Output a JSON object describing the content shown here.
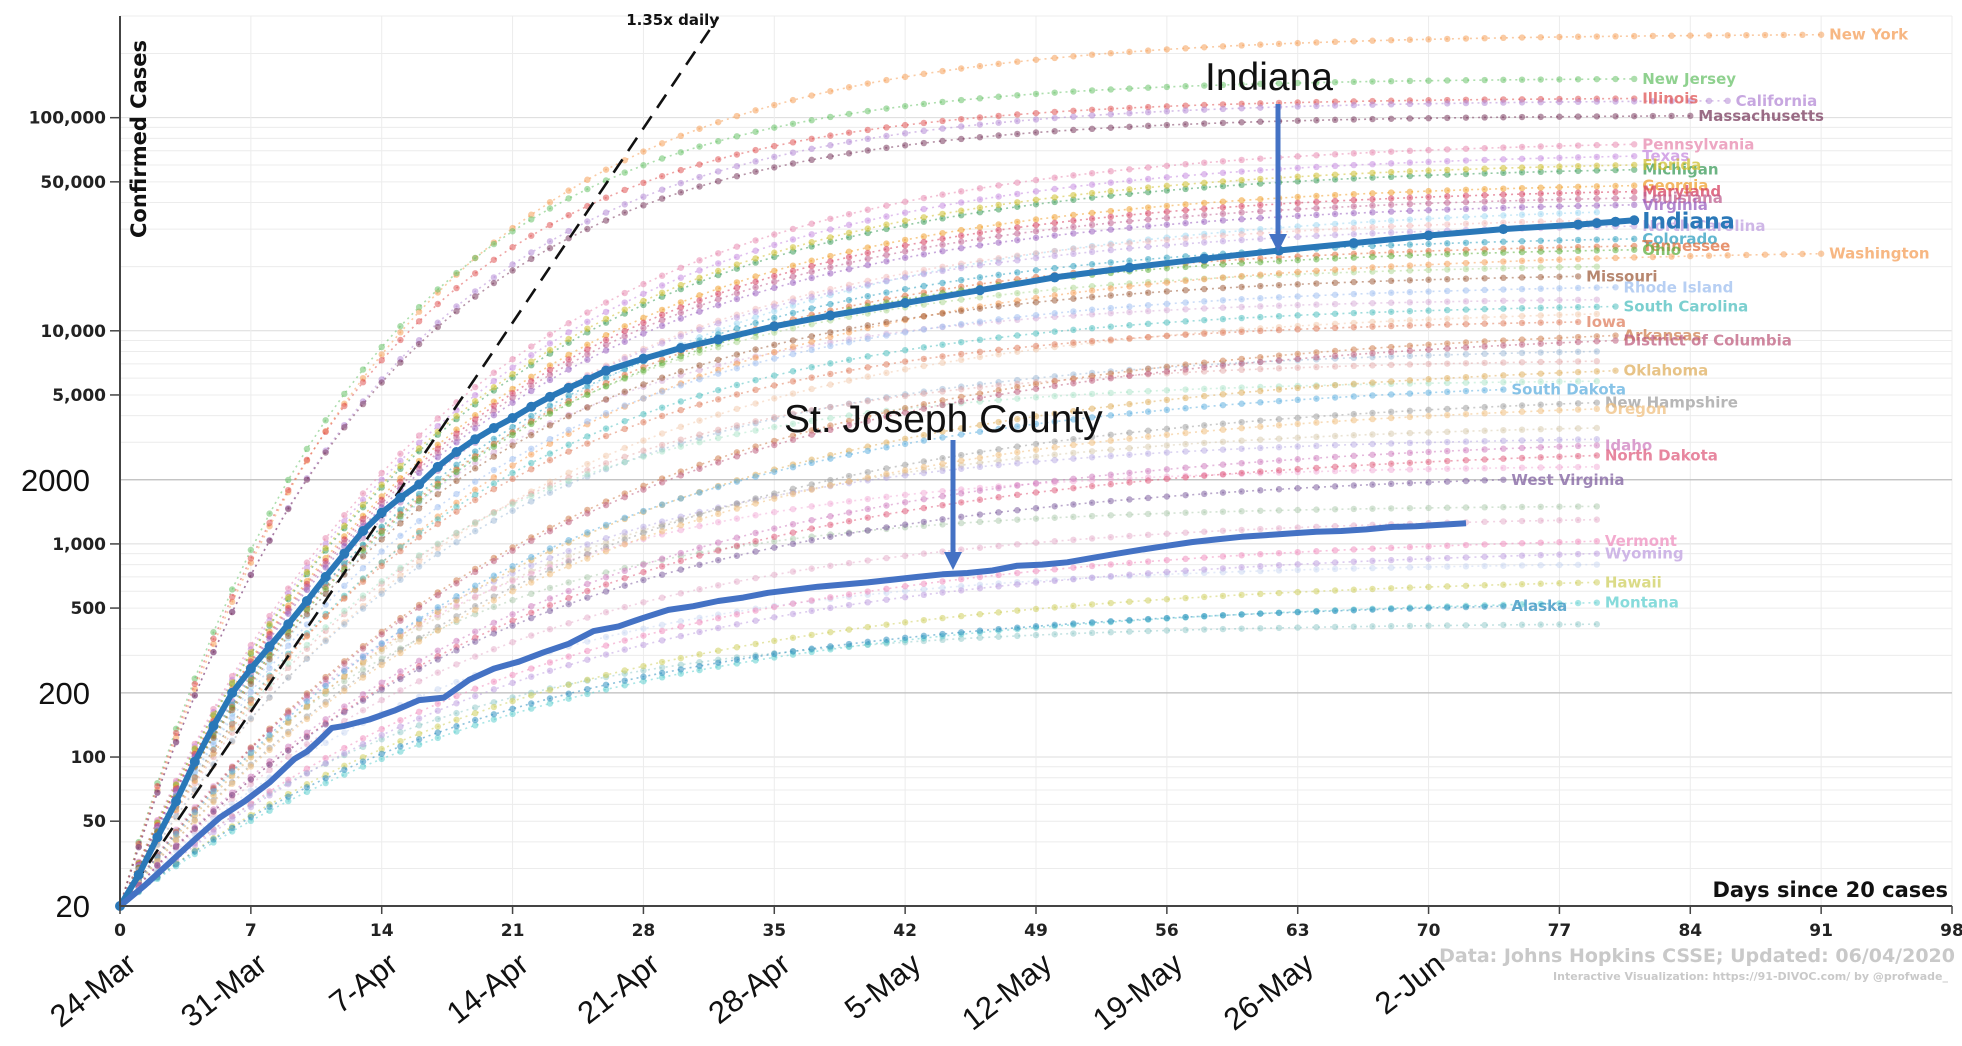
{
  "chart_data": {
    "type": "line",
    "title": "",
    "ylabel": "Confirmed Cases",
    "xlabel": "Days since 20 cases",
    "y_scale": "log",
    "ylim": [
      20,
      300000
    ],
    "xlim": [
      0,
      98
    ],
    "grid": true,
    "y_ticks_bold": [
      {
        "v": 100000,
        "label": "100,000"
      },
      {
        "v": 50000,
        "label": "50,000"
      },
      {
        "v": 10000,
        "label": "10,000"
      },
      {
        "v": 5000,
        "label": "5,000"
      },
      {
        "v": 1000,
        "label": "1,000"
      },
      {
        "v": 500,
        "label": "500"
      },
      {
        "v": 100,
        "label": "100"
      },
      {
        "v": 50,
        "label": "50"
      }
    ],
    "y_ticks_big": [
      {
        "v": 2000,
        "label": "2000"
      },
      {
        "v": 200,
        "label": "200"
      },
      {
        "v": 20,
        "label": "20"
      }
    ],
    "x_ticks": [
      {
        "v": 0,
        "label": "0"
      },
      {
        "v": 7,
        "label": "7"
      },
      {
        "v": 14,
        "label": "14"
      },
      {
        "v": 21,
        "label": "21"
      },
      {
        "v": 28,
        "label": "28"
      },
      {
        "v": 35,
        "label": "35"
      },
      {
        "v": 42,
        "label": "42"
      },
      {
        "v": 49,
        "label": "49"
      },
      {
        "v": 56,
        "label": "56"
      },
      {
        "v": 63,
        "label": "63"
      },
      {
        "v": 70,
        "label": "70"
      },
      {
        "v": 77,
        "label": "77"
      },
      {
        "v": 84,
        "label": "84"
      },
      {
        "v": 91,
        "label": "91"
      },
      {
        "v": 98,
        "label": "98"
      }
    ],
    "date_ticks": [
      {
        "v": 0,
        "label": "24-Mar"
      },
      {
        "v": 7,
        "label": "31-Mar"
      },
      {
        "v": 14,
        "label": "7-Apr"
      },
      {
        "v": 21,
        "label": "14-Apr"
      },
      {
        "v": 28,
        "label": "21-Apr"
      },
      {
        "v": 35,
        "label": "28-Apr"
      },
      {
        "v": 42,
        "label": "5-May"
      },
      {
        "v": 49,
        "label": "12-May"
      },
      {
        "v": 56,
        "label": "19-May"
      },
      {
        "v": 63,
        "label": "26-May"
      },
      {
        "v": 70,
        "label": "2-Jun"
      }
    ],
    "reference_line": {
      "label": "1.35x daily",
      "start": [
        0,
        20
      ],
      "growth": 1.35
    },
    "highlight_series": [
      {
        "name": "Indiana",
        "color": "#2a78b8",
        "points": [
          [
            0,
            20
          ],
          [
            1,
            28
          ],
          [
            2,
            42
          ],
          [
            3,
            62
          ],
          [
            4,
            95
          ],
          [
            5,
            140
          ],
          [
            6,
            200
          ],
          [
            7,
            260
          ],
          [
            8,
            330
          ],
          [
            9,
            420
          ],
          [
            10,
            540
          ],
          [
            11,
            700
          ],
          [
            12,
            900
          ],
          [
            13,
            1150
          ],
          [
            14,
            1400
          ],
          [
            15,
            1650
          ],
          [
            16,
            1900
          ],
          [
            17,
            2300
          ],
          [
            18,
            2700
          ],
          [
            19,
            3100
          ],
          [
            20,
            3500
          ],
          [
            21,
            3900
          ],
          [
            22,
            4400
          ],
          [
            23,
            4900
          ],
          [
            24,
            5400
          ],
          [
            25,
            5900
          ],
          [
            26,
            6500
          ],
          [
            28,
            7400
          ],
          [
            30,
            8300
          ],
          [
            32,
            9100
          ],
          [
            35,
            10500
          ],
          [
            38,
            11800
          ],
          [
            42,
            13500
          ],
          [
            46,
            15500
          ],
          [
            50,
            17800
          ],
          [
            54,
            19800
          ],
          [
            58,
            21800
          ],
          [
            62,
            23800
          ],
          [
            66,
            25800
          ],
          [
            70,
            28000
          ],
          [
            74,
            30000
          ],
          [
            78,
            31500
          ],
          [
            79,
            32000
          ],
          [
            80,
            32500
          ],
          [
            81,
            33000
          ]
        ]
      }
    ],
    "county_series": {
      "name": "St. Joseph County",
      "color": "#4472c4",
      "points": [
        [
          0,
          20
        ],
        [
          2,
          25
        ],
        [
          4,
          32
        ],
        [
          6,
          41
        ],
        [
          8,
          52
        ],
        [
          10,
          62
        ],
        [
          12,
          76
        ],
        [
          14,
          98
        ],
        [
          15,
          106
        ],
        [
          16,
          120
        ],
        [
          17,
          137
        ],
        [
          18,
          140
        ],
        [
          20,
          150
        ],
        [
          22,
          165
        ],
        [
          24,
          185
        ],
        [
          26,
          190
        ],
        [
          28,
          230
        ],
        [
          30,
          260
        ],
        [
          32,
          280
        ],
        [
          34,
          310
        ],
        [
          36,
          340
        ],
        [
          38,
          390
        ],
        [
          40,
          410
        ],
        [
          42,
          450
        ],
        [
          44,
          490
        ],
        [
          46,
          510
        ],
        [
          48,
          540
        ],
        [
          50,
          560
        ],
        [
          52,
          590
        ],
        [
          56,
          630
        ],
        [
          60,
          660
        ],
        [
          64,
          700
        ],
        [
          66,
          720
        ],
        [
          68,
          730
        ],
        [
          70,
          750
        ],
        [
          72,
          790
        ],
        [
          74,
          800
        ],
        [
          76,
          820
        ],
        [
          78,
          860
        ],
        [
          80,
          900
        ],
        [
          82,
          940
        ],
        [
          84,
          980
        ],
        [
          86,
          1020
        ],
        [
          88,
          1050
        ],
        [
          90,
          1080
        ],
        [
          92,
          1100
        ],
        [
          94,
          1120
        ],
        [
          96,
          1140
        ],
        [
          98,
          1150
        ],
        [
          100,
          1170
        ],
        [
          102,
          1200
        ],
        [
          104,
          1210
        ],
        [
          106,
          1230
        ],
        [
          108,
          1250
        ]
      ]
    },
    "county_series_x_domain": [
      0,
      108
    ],
    "labeled_states": [
      {
        "name": "New York",
        "color": "#f5a05a",
        "end_x": 91,
        "start_y": 20,
        "end_y": 245000
      },
      {
        "name": "New Jersey",
        "color": "#6ac26a",
        "end_x": 81,
        "start_y": 20,
        "end_y": 152000
      },
      {
        "name": "Illinois",
        "color": "#e05555",
        "end_x": 81,
        "start_y": 20,
        "end_y": 123000
      },
      {
        "name": "California",
        "color": "#b58ad6",
        "end_x": 86,
        "start_y": 20,
        "end_y": 120000
      },
      {
        "name": "Massachusetts",
        "color": "#7a3b5e",
        "end_x": 84,
        "start_y": 20,
        "end_y": 102000
      },
      {
        "name": "Pennsylvania",
        "color": "#e88ab0",
        "end_x": 81,
        "start_y": 20,
        "end_y": 75000
      },
      {
        "name": "Texas",
        "color": "#c78ce0",
        "end_x": 81,
        "start_y": 20,
        "end_y": 66000
      },
      {
        "name": "Michigan",
        "color": "#3c9c5a",
        "end_x": 81,
        "start_y": 20,
        "end_y": 57000
      },
      {
        "name": "Florida",
        "color": "#d0c030",
        "end_x": 81,
        "start_y": 20,
        "end_y": 60000
      },
      {
        "name": "Georgia",
        "color": "#f0a030",
        "end_x": 81,
        "start_y": 20,
        "end_y": 48000
      },
      {
        "name": "Maryland",
        "color": "#d64060",
        "end_x": 81,
        "start_y": 20,
        "end_y": 45000
      },
      {
        "name": "Louisiana",
        "color": "#c06090",
        "end_x": 81,
        "start_y": 20,
        "end_y": 42000
      },
      {
        "name": "Virginia",
        "color": "#9a60c0",
        "end_x": 81,
        "start_y": 20,
        "end_y": 39000
      },
      {
        "name": "North Carolina",
        "color": "#c0a0e0",
        "end_x": 81,
        "start_y": 20,
        "end_y": 31000
      },
      {
        "name": "Colorado",
        "color": "#30a0c0",
        "end_x": 81,
        "start_y": 20,
        "end_y": 27000
      },
      {
        "name": "Tennessee",
        "color": "#e07040",
        "end_x": 81,
        "start_y": 20,
        "end_y": 25000
      },
      {
        "name": "Washington",
        "color": "#f5a05a",
        "end_x": 91,
        "start_y": 20,
        "end_y": 23000
      },
      {
        "name": "Ohio",
        "color": "#60b040",
        "end_x": 81,
        "start_y": 20,
        "end_y": 24000
      },
      {
        "name": "Missouri",
        "color": "#a06040",
        "end_x": 78,
        "start_y": 20,
        "end_y": 18000
      },
      {
        "name": "Rhode Island",
        "color": "#a0c0f0",
        "end_x": 80,
        "start_y": 20,
        "end_y": 16000
      },
      {
        "name": "South Carolina",
        "color": "#50c0c0",
        "end_x": 80,
        "start_y": 20,
        "end_y": 13000
      },
      {
        "name": "Iowa",
        "color": "#e08060",
        "end_x": 78,
        "start_y": 20,
        "end_y": 11000
      },
      {
        "name": "Arkansas",
        "color": "#d08050",
        "end_x": 80,
        "start_y": 20,
        "end_y": 9500
      },
      {
        "name": "District of Columbia",
        "color": "#c06080",
        "end_x": 80,
        "start_y": 20,
        "end_y": 9000
      },
      {
        "name": "Oklahoma",
        "color": "#e0b060",
        "end_x": 80,
        "start_y": 20,
        "end_y": 6500
      },
      {
        "name": "South Dakota",
        "color": "#60b0e0",
        "end_x": 74,
        "start_y": 20,
        "end_y": 5300
      },
      {
        "name": "New Hampshire",
        "color": "#a0a0a0",
        "end_x": 79,
        "start_y": 20,
        "end_y": 4600
      },
      {
        "name": "Oregon",
        "color": "#f0c080",
        "end_x": 79,
        "start_y": 20,
        "end_y": 4300
      },
      {
        "name": "Idaho",
        "color": "#d080c0",
        "end_x": 79,
        "start_y": 20,
        "end_y": 2900
      },
      {
        "name": "North Dakota",
        "color": "#e06080",
        "end_x": 79,
        "start_y": 20,
        "end_y": 2600
      },
      {
        "name": "West Virginia",
        "color": "#8060a0",
        "end_x": 74,
        "start_y": 20,
        "end_y": 2000
      },
      {
        "name": "Vermont",
        "color": "#f090c0",
        "end_x": 79,
        "start_y": 20,
        "end_y": 1030
      },
      {
        "name": "Wyoming",
        "color": "#c0a0e0",
        "end_x": 79,
        "start_y": 20,
        "end_y": 900
      },
      {
        "name": "Hawaii",
        "color": "#d0d060",
        "end_x": 79,
        "start_y": 20,
        "end_y": 660
      },
      {
        "name": "Montana",
        "color": "#60d0d0",
        "end_x": 79,
        "start_y": 20,
        "end_y": 530
      },
      {
        "name": "Alaska",
        "color": "#3090c0",
        "end_x": 74,
        "start_y": 20,
        "end_y": 510
      }
    ],
    "background_states": [
      {
        "color": "#8fd0f0",
        "end_x": 79,
        "end_y": 36000
      },
      {
        "color": "#f0b0b0",
        "end_x": 79,
        "end_y": 33000
      },
      {
        "color": "#a0d080",
        "end_x": 79,
        "end_y": 20000
      },
      {
        "color": "#d0a0d0",
        "end_x": 79,
        "end_y": 14000
      },
      {
        "color": "#f0c0a0",
        "end_x": 79,
        "end_y": 12000
      },
      {
        "color": "#90b0d0",
        "end_x": 79,
        "end_y": 8000
      },
      {
        "color": "#e0a0a0",
        "end_x": 79,
        "end_y": 7200
      },
      {
        "color": "#a0e0c0",
        "end_x": 79,
        "end_y": 5800
      },
      {
        "color": "#d0c0a0",
        "end_x": 79,
        "end_y": 3500
      },
      {
        "color": "#b0a0e0",
        "end_x": 79,
        "end_y": 3100
      },
      {
        "color": "#f0a0d0",
        "end_x": 79,
        "end_y": 2300
      },
      {
        "color": "#a0c0a0",
        "end_x": 79,
        "end_y": 1500
      },
      {
        "color": "#e0a0c0",
        "end_x": 79,
        "end_y": 1300
      },
      {
        "color": "#c0d0f0",
        "end_x": 79,
        "end_y": 800
      },
      {
        "color": "#80c0c0",
        "end_x": 79,
        "end_y": 420
      }
    ],
    "annotations": [
      {
        "text": "Indiana",
        "arrow_to_x": 62,
        "arrow_to_y": 26000
      },
      {
        "text": "St. Joseph County",
        "arrow_to_x": 62,
        "arrow_to_y": 1000
      }
    ],
    "source": "Data: Johns Hopkins CSSE; Updated: 06/04/2020",
    "source_sub": "Interactive Visualization: https://91-DIVOC.com/ by @profwade_"
  }
}
